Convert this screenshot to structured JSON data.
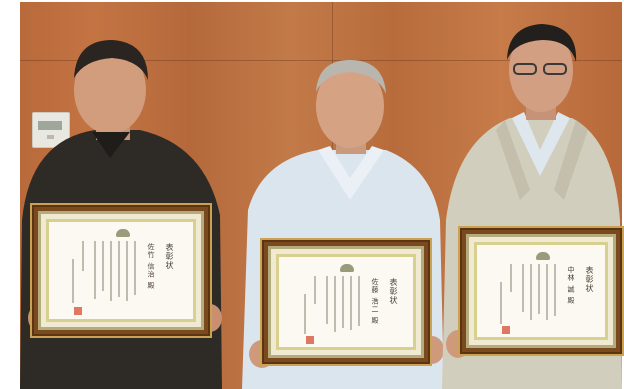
{
  "certificates": [
    {
      "title": "表彰状",
      "recipient": "佐竹 信治 殿"
    },
    {
      "title": "表彰状",
      "recipient": "佐藤 浩二 殿"
    },
    {
      "title": "表彰状",
      "recipient": "中林 誠 殿"
    }
  ],
  "colors": {
    "wall": "#bf7444",
    "frame": "#7a4a1e",
    "frame_gilt": "#caa252",
    "paper": "#fbf9f1",
    "shirt_dark": "#2e2b27",
    "shirt_light_blue": "#dbe5ee",
    "jacket_beige": "#d2cebd"
  }
}
